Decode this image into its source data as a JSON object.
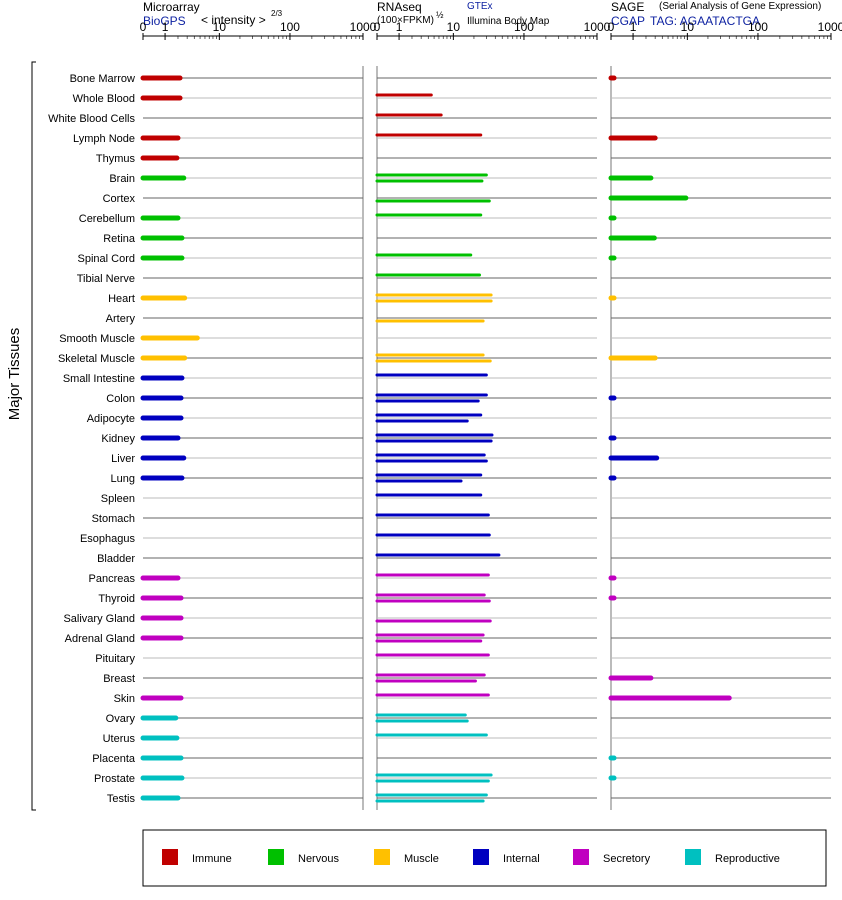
{
  "panels": {
    "microarray": {
      "title": "Microarray",
      "source": "BioGPS",
      "scale_label": "< intensity >",
      "scale_exponent": "2/3",
      "ticks": [
        "0",
        "1",
        "10",
        "100",
        "1000"
      ]
    },
    "rnaseq": {
      "title": "RNAseq",
      "scale_label": "(100×FPKM)",
      "scale_exponent": "½",
      "source_top": "GTEx",
      "source_bottom": "Illumina Body Map",
      "ticks": [
        "0",
        "1",
        "10",
        "100",
        "1000"
      ]
    },
    "sage": {
      "title": "SAGE",
      "subtitle": "(Serial Analysis of Gene Expression)",
      "source": "CGAP",
      "tag_label": "TAG: AGAATACTGA",
      "ticks": [
        "0",
        "1",
        "10",
        "100",
        "1000"
      ]
    }
  },
  "y_axis_label": "Major Tissues",
  "legend": [
    {
      "label": "Immune",
      "color": "#c00000"
    },
    {
      "label": "Nervous",
      "color": "#00c000"
    },
    {
      "label": "Muscle",
      "color": "#ffc000"
    },
    {
      "label": "Internal",
      "color": "#0000c0"
    },
    {
      "label": "Secretory",
      "color": "#c000c0"
    },
    {
      "label": "Reproductive",
      "color": "#00c0c0"
    }
  ],
  "chart_data": {
    "type": "bar",
    "orientation": "horizontal",
    "x_scale": "log",
    "xlim": [
      0,
      1000
    ],
    "grid": true,
    "categories": [
      "Bone Marrow",
      "Whole Blood",
      "White Blood Cells",
      "Lymph Node",
      "Thymus",
      "Brain",
      "Cortex",
      "Cerebellum",
      "Retina",
      "Spinal Cord",
      "Tibial Nerve",
      "Heart",
      "Artery",
      "Smooth Muscle",
      "Skeletal Muscle",
      "Small Intestine",
      "Colon",
      "Adipocyte",
      "Kidney",
      "Liver",
      "Lung",
      "Spleen",
      "Stomach",
      "Esophagus",
      "Bladder",
      "Pancreas",
      "Thyroid",
      "Salivary Gland",
      "Adrenal Gland",
      "Pituitary",
      "Breast",
      "Skin",
      "Ovary",
      "Uterus",
      "Placenta",
      "Prostate",
      "Testis"
    ],
    "groups": [
      "Immune",
      "Immune",
      "Immune",
      "Immune",
      "Immune",
      "Nervous",
      "Nervous",
      "Nervous",
      "Nervous",
      "Nervous",
      "Nervous",
      "Muscle",
      "Muscle",
      "Muscle",
      "Muscle",
      "Internal",
      "Internal",
      "Internal",
      "Internal",
      "Internal",
      "Internal",
      "Internal",
      "Internal",
      "Internal",
      "Internal",
      "Secretory",
      "Secretory",
      "Secretory",
      "Secretory",
      "Secretory",
      "Secretory",
      "Secretory",
      "Reproductive",
      "Reproductive",
      "Reproductive",
      "Reproductive",
      "Reproductive"
    ],
    "microarray": [
      2.2,
      2.2,
      null,
      2.0,
      1.9,
      2.6,
      null,
      2.0,
      2.4,
      2.4,
      null,
      2.7,
      null,
      4.5,
      2.7,
      2.4,
      2.3,
      2.3,
      2.0,
      2.6,
      2.4,
      null,
      null,
      null,
      null,
      2.0,
      2.3,
      2.3,
      2.3,
      null,
      null,
      2.3,
      1.8,
      1.9,
      2.3,
      2.4,
      2.0
    ],
    "rnaseq_gtex": [
      null,
      4.5,
      6.5,
      25,
      null,
      30,
      null,
      25,
      null,
      18,
      24,
      35,
      null,
      null,
      27,
      30,
      30,
      25,
      36,
      28,
      25,
      25,
      32,
      33,
      45,
      32,
      28,
      null,
      27,
      32,
      28,
      32,
      15,
      30,
      null,
      35,
      30
    ],
    "rnaseq_ibm": [
      null,
      null,
      null,
      null,
      null,
      26,
      33,
      null,
      null,
      null,
      null,
      35,
      27,
      null,
      34,
      null,
      23,
      16,
      35,
      30,
      13,
      null,
      null,
      null,
      null,
      null,
      33,
      34,
      25,
      null,
      21,
      null,
      16,
      null,
      null,
      32,
      27
    ],
    "sage": [
      0.1,
      null,
      null,
      3.0,
      null,
      2.5,
      9.5,
      0.1,
      2.9,
      0.1,
      null,
      0.1,
      null,
      null,
      3.0,
      null,
      0.1,
      null,
      0.1,
      3.2,
      0.1,
      null,
      null,
      null,
      null,
      0.1,
      0.1,
      null,
      null,
      null,
      2.5,
      40,
      null,
      null,
      0.1,
      0.1,
      null
    ]
  }
}
